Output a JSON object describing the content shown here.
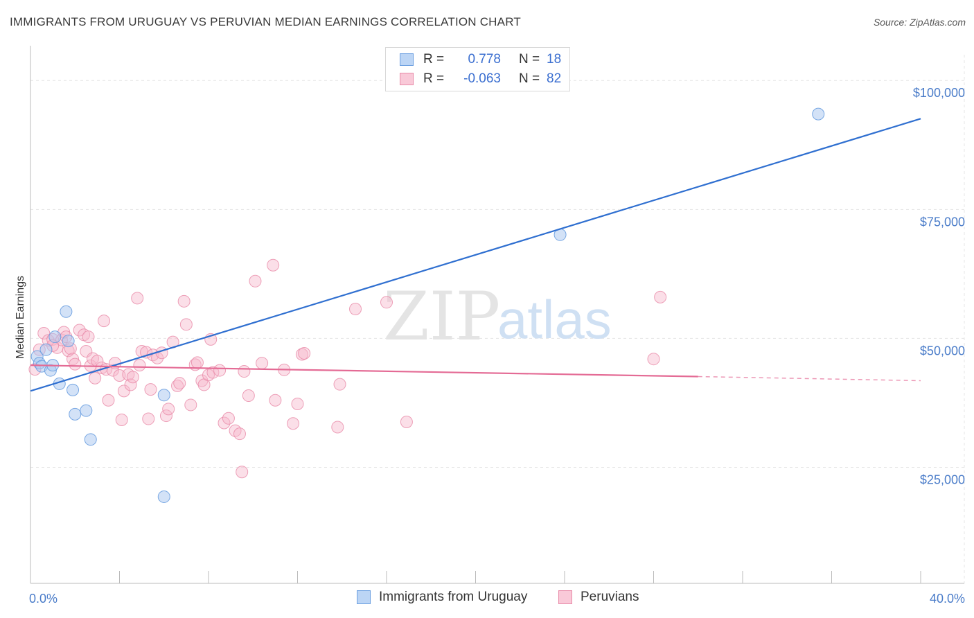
{
  "title": "IMMIGRANTS FROM URUGUAY VS PERUVIAN MEDIAN EARNINGS CORRELATION CHART",
  "source": "Source: ZipAtlas.com",
  "watermark": {
    "zip": "ZIP",
    "atlas": "atlas"
  },
  "colors": {
    "blue_point": "#a8c6f0",
    "blue_stroke": "#6a9ee0",
    "blue_line": "#2f6fd0",
    "pink_point": "#f6b8cc",
    "pink_stroke": "#e88aa8",
    "pink_line": "#e46b95",
    "grid": "#e4e4e4",
    "tick_text": "#4a7cc9"
  },
  "legend": {
    "rows": [
      {
        "r_label": "R =",
        "r_value": "0.778",
        "n_label": "N =",
        "n_value": "18"
      },
      {
        "r_label": "R =",
        "r_value": "-0.063",
        "n_label": "N =",
        "n_value": "82"
      }
    ]
  },
  "bottom_legend": [
    "Immigrants from Uruguay",
    "Peruvians"
  ],
  "chart_data": {
    "type": "scatter",
    "title": "IMMIGRANTS FROM URUGUAY VS PERUVIAN MEDIAN EARNINGS CORRELATION CHART",
    "xlabel": "",
    "ylabel": "Median Earnings",
    "xlim": [
      0,
      40
    ],
    "ylim": [
      2500,
      105000
    ],
    "x_tick_labels": [
      "0.0%",
      "40.0%"
    ],
    "y_ticks": [
      25000,
      50000,
      75000,
      100000
    ],
    "y_tick_labels": [
      "$25,000",
      "$50,000",
      "$75,000",
      "$100,000"
    ],
    "grid": true,
    "series": [
      {
        "name": "Immigrants from Uruguay",
        "r": 0.778,
        "n": 18,
        "trend": {
          "x": [
            0,
            40
          ],
          "y": [
            39800,
            92600
          ]
        },
        "points": [
          [
            0.3,
            46500
          ],
          [
            0.4,
            45200
          ],
          [
            0.5,
            44600
          ],
          [
            0.7,
            47800
          ],
          [
            0.9,
            43800
          ],
          [
            1.0,
            44800
          ],
          [
            1.1,
            50300
          ],
          [
            1.3,
            41200
          ],
          [
            1.6,
            55200
          ],
          [
            1.7,
            49500
          ],
          [
            1.9,
            40000
          ],
          [
            2.0,
            35300
          ],
          [
            2.5,
            36000
          ],
          [
            2.7,
            30400
          ],
          [
            6.0,
            39000
          ],
          [
            6.0,
            19300
          ],
          [
            23.8,
            70100
          ],
          [
            35.4,
            93500
          ]
        ]
      },
      {
        "name": "Peruvians",
        "r": -0.063,
        "n": 82,
        "trend": {
          "x": [
            0,
            30
          ],
          "y": [
            44800,
            42600
          ]
        },
        "trend_dashed": {
          "x": [
            30,
            40
          ],
          "y": [
            42600,
            41800
          ]
        },
        "points": [
          [
            0.2,
            44000
          ],
          [
            0.4,
            47800
          ],
          [
            0.6,
            51000
          ],
          [
            0.8,
            49600
          ],
          [
            1.0,
            49800
          ],
          [
            1.2,
            48200
          ],
          [
            1.4,
            49700
          ],
          [
            1.5,
            51200
          ],
          [
            1.6,
            50300
          ],
          [
            1.7,
            47600
          ],
          [
            1.8,
            48000
          ],
          [
            1.9,
            46000
          ],
          [
            2.0,
            45000
          ],
          [
            2.2,
            51600
          ],
          [
            2.4,
            50700
          ],
          [
            2.5,
            47500
          ],
          [
            2.6,
            50300
          ],
          [
            2.7,
            44700
          ],
          [
            2.8,
            46100
          ],
          [
            2.9,
            42300
          ],
          [
            3.0,
            45600
          ],
          [
            3.2,
            44300
          ],
          [
            3.3,
            53400
          ],
          [
            3.4,
            44000
          ],
          [
            3.5,
            38000
          ],
          [
            3.7,
            43800
          ],
          [
            3.8,
            45200
          ],
          [
            4.0,
            42800
          ],
          [
            4.1,
            34200
          ],
          [
            4.2,
            39800
          ],
          [
            4.4,
            43000
          ],
          [
            4.5,
            41000
          ],
          [
            4.6,
            42500
          ],
          [
            4.8,
            57800
          ],
          [
            4.9,
            44800
          ],
          [
            5.0,
            47500
          ],
          [
            5.2,
            47300
          ],
          [
            5.3,
            34400
          ],
          [
            5.4,
            40100
          ],
          [
            5.5,
            46800
          ],
          [
            5.7,
            46200
          ],
          [
            5.9,
            47200
          ],
          [
            6.1,
            35000
          ],
          [
            6.2,
            36300
          ],
          [
            6.4,
            49300
          ],
          [
            6.6,
            40800
          ],
          [
            6.7,
            41300
          ],
          [
            6.9,
            57200
          ],
          [
            7.0,
            52700
          ],
          [
            7.2,
            37100
          ],
          [
            7.4,
            44900
          ],
          [
            7.5,
            45300
          ],
          [
            7.7,
            41800
          ],
          [
            7.8,
            41000
          ],
          [
            8.0,
            42900
          ],
          [
            8.1,
            49800
          ],
          [
            8.2,
            43400
          ],
          [
            8.5,
            43800
          ],
          [
            8.7,
            33600
          ],
          [
            8.9,
            34500
          ],
          [
            9.2,
            32100
          ],
          [
            9.4,
            31500
          ],
          [
            9.5,
            24100
          ],
          [
            9.6,
            43600
          ],
          [
            9.8,
            38900
          ],
          [
            10.1,
            61100
          ],
          [
            10.4,
            45200
          ],
          [
            10.9,
            64200
          ],
          [
            11.0,
            38000
          ],
          [
            11.4,
            43900
          ],
          [
            11.8,
            33500
          ],
          [
            12.0,
            37300
          ],
          [
            12.2,
            46900
          ],
          [
            12.3,
            47100
          ],
          [
            13.8,
            32800
          ],
          [
            13.9,
            41100
          ],
          [
            14.6,
            55700
          ],
          [
            16.0,
            57000
          ],
          [
            16.9,
            33800
          ],
          [
            28.0,
            46000
          ],
          [
            28.3,
            58000
          ],
          [
            1.0,
            48600
          ]
        ]
      }
    ]
  }
}
